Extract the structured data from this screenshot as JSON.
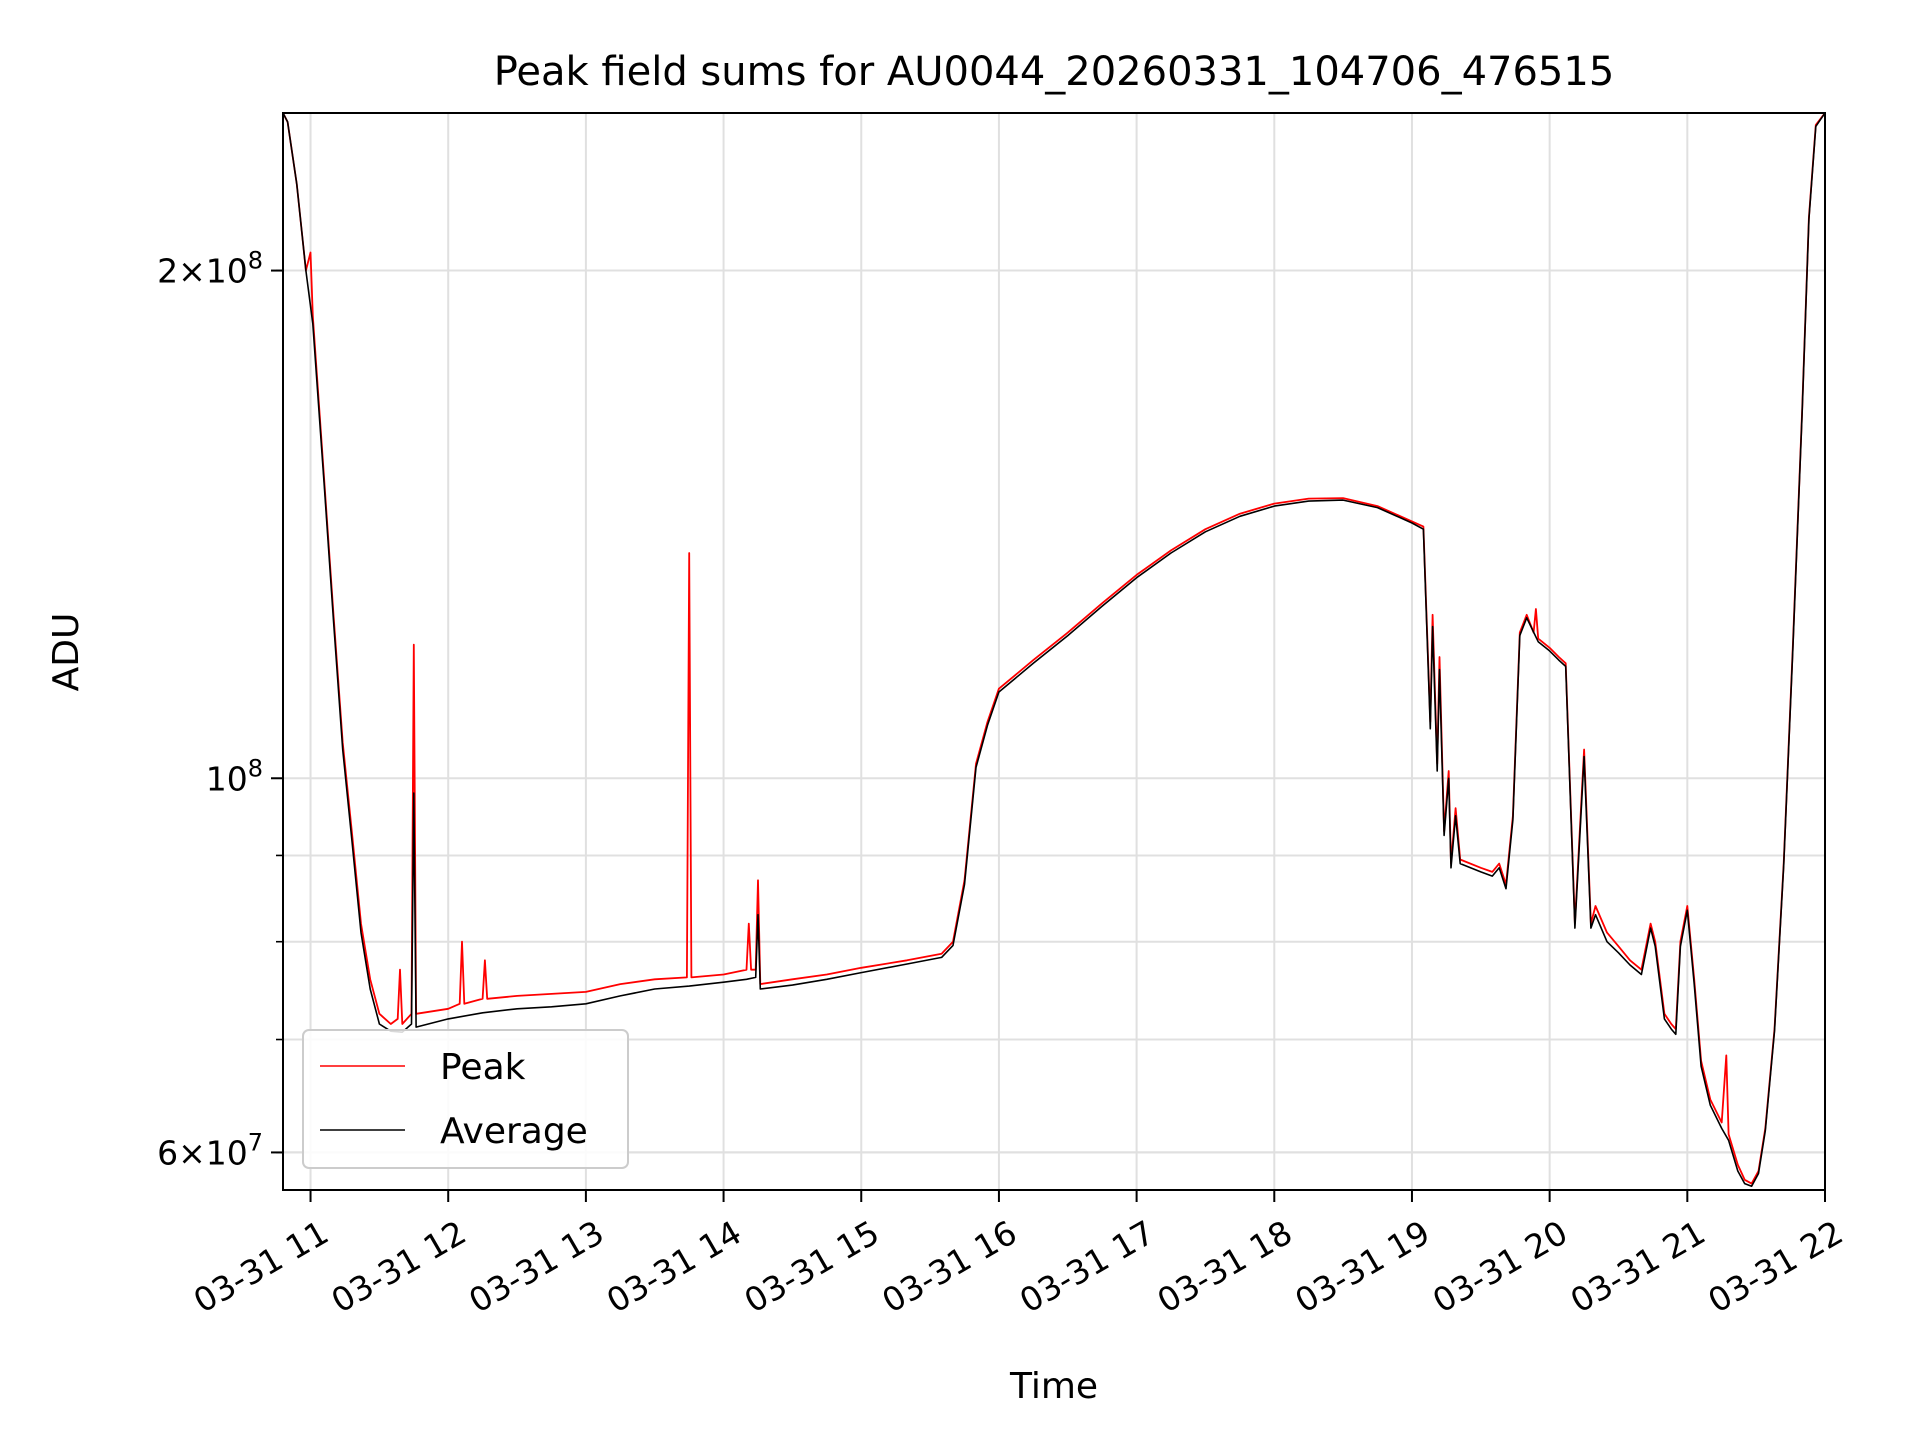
{
  "chart_data": {
    "type": "line",
    "title": "Peak field sums for AU0044_20260331_104706_476515",
    "xlabel": "Time",
    "ylabel": "ADU",
    "y_scale": "log",
    "ylim": [
      57000000,
      248000000
    ],
    "xlim": [
      "2026-03-31 10:48",
      "2026-03-31 22:00"
    ],
    "x_tick_labels": [
      "03-31 11",
      "03-31 12",
      "03-31 13",
      "03-31 14",
      "03-31 15",
      "03-31 16",
      "03-31 17",
      "03-31 18",
      "03-31 19",
      "03-31 20",
      "03-31 21",
      "03-31 22"
    ],
    "x_tick_times": [
      "2026-03-31 11:00",
      "2026-03-31 12:00",
      "2026-03-31 13:00",
      "2026-03-31 14:00",
      "2026-03-31 15:00",
      "2026-03-31 16:00",
      "2026-03-31 17:00",
      "2026-03-31 18:00",
      "2026-03-31 19:00",
      "2026-03-31 20:00",
      "2026-03-31 21:00",
      "2026-03-31 22:00"
    ],
    "y_major_ticks": [
      {
        "value": 200000000,
        "mantissa": "2",
        "exponent": "8"
      },
      {
        "value": 100000000,
        "mantissa": "",
        "exponent": "8"
      },
      {
        "value": 60000000,
        "mantissa": "6",
        "exponent": "7"
      }
    ],
    "y_minor_ticks": [
      200000000,
      90000000,
      80000000,
      70000000,
      60000000
    ],
    "grid": true,
    "legend": {
      "placement": "lower-left"
    },
    "series": [
      {
        "name": "Peak",
        "color": "#ff0000",
        "points": [
          [
            "2026-03-31 10:48",
            248000000
          ],
          [
            "2026-03-31 10:50",
            245000000
          ],
          [
            "2026-03-31 10:54",
            225000000
          ],
          [
            "2026-03-31 10:58",
            200000000
          ],
          [
            "2026-03-31 11:00",
            205000000
          ],
          [
            "2026-03-31 11:01",
            188000000
          ],
          [
            "2026-03-31 11:06",
            150000000
          ],
          [
            "2026-03-31 11:10",
            125000000
          ],
          [
            "2026-03-31 11:14",
            105000000
          ],
          [
            "2026-03-31 11:18",
            93000000
          ],
          [
            "2026-03-31 11:22",
            82000000
          ],
          [
            "2026-03-31 11:26",
            76000000
          ],
          [
            "2026-03-31 11:30",
            72500000
          ],
          [
            "2026-03-31 11:35",
            71500000
          ],
          [
            "2026-03-31 11:38",
            72000000
          ],
          [
            "2026-03-31 11:39",
            77000000
          ],
          [
            "2026-03-31 11:40",
            71500000
          ],
          [
            "2026-03-31 11:44",
            72500000
          ],
          [
            "2026-03-31 11:45",
            120000000
          ],
          [
            "2026-03-31 11:46",
            72500000
          ],
          [
            "2026-03-31 12:00",
            73000000
          ],
          [
            "2026-03-31 12:05",
            73500000
          ],
          [
            "2026-03-31 12:06",
            80000000
          ],
          [
            "2026-03-31 12:07",
            73500000
          ],
          [
            "2026-03-31 12:15",
            74000000
          ],
          [
            "2026-03-31 12:16",
            78000000
          ],
          [
            "2026-03-31 12:17",
            74000000
          ],
          [
            "2026-03-31 12:30",
            74300000
          ],
          [
            "2026-03-31 12:45",
            74500000
          ],
          [
            "2026-03-31 13:00",
            74700000
          ],
          [
            "2026-03-31 13:15",
            75500000
          ],
          [
            "2026-03-31 13:30",
            76000000
          ],
          [
            "2026-03-31 13:44",
            76200000
          ],
          [
            "2026-03-31 13:45",
            136000000
          ],
          [
            "2026-03-31 13:46",
            76200000
          ],
          [
            "2026-03-31 14:00",
            76500000
          ],
          [
            "2026-03-31 14:10",
            77000000
          ],
          [
            "2026-03-31 14:11",
            82000000
          ],
          [
            "2026-03-31 14:12",
            77000000
          ],
          [
            "2026-03-31 14:14",
            77000000
          ],
          [
            "2026-03-31 14:15",
            87000000
          ],
          [
            "2026-03-31 14:16",
            75500000
          ],
          [
            "2026-03-31 14:30",
            76000000
          ],
          [
            "2026-03-31 14:45",
            76500000
          ],
          [
            "2026-03-31 15:00",
            77200000
          ],
          [
            "2026-03-31 15:20",
            78000000
          ],
          [
            "2026-03-31 15:35",
            78700000
          ],
          [
            "2026-03-31 15:40",
            80000000
          ],
          [
            "2026-03-31 15:45",
            87000000
          ],
          [
            "2026-03-31 15:50",
            102000000
          ],
          [
            "2026-03-31 15:55",
            108000000
          ],
          [
            "2026-03-31 16:00",
            113000000
          ],
          [
            "2026-03-31 16:15",
            117500000
          ],
          [
            "2026-03-31 16:30",
            122000000
          ],
          [
            "2026-03-31 16:45",
            127000000
          ],
          [
            "2026-03-31 17:00",
            132000000
          ],
          [
            "2026-03-31 17:15",
            136500000
          ],
          [
            "2026-03-31 17:30",
            140500000
          ],
          [
            "2026-03-31 17:45",
            143500000
          ],
          [
            "2026-03-31 18:00",
            145500000
          ],
          [
            "2026-03-31 18:15",
            146500000
          ],
          [
            "2026-03-31 18:30",
            146600000
          ],
          [
            "2026-03-31 18:45",
            145000000
          ],
          [
            "2026-03-31 19:00",
            142000000
          ],
          [
            "2026-03-31 19:05",
            141000000
          ],
          [
            "2026-03-31 19:08",
            108000000
          ],
          [
            "2026-03-31 19:09",
            125000000
          ],
          [
            "2026-03-31 19:11",
            102000000
          ],
          [
            "2026-03-31 19:12",
            118000000
          ],
          [
            "2026-03-31 19:14",
            93000000
          ],
          [
            "2026-03-31 19:16",
            101000000
          ],
          [
            "2026-03-31 19:17",
            89000000
          ],
          [
            "2026-03-31 19:19",
            96000000
          ],
          [
            "2026-03-31 19:21",
            89500000
          ],
          [
            "2026-03-31 19:30",
            88500000
          ],
          [
            "2026-03-31 19:35",
            88000000
          ],
          [
            "2026-03-31 19:38",
            89000000
          ],
          [
            "2026-03-31 19:41",
            86500000
          ],
          [
            "2026-03-31 19:44",
            95000000
          ],
          [
            "2026-03-31 19:47",
            122000000
          ],
          [
            "2026-03-31 19:50",
            125000000
          ],
          [
            "2026-03-31 19:53",
            122000000
          ],
          [
            "2026-03-31 19:54",
            126000000
          ],
          [
            "2026-03-31 19:55",
            121000000
          ],
          [
            "2026-03-31 20:00",
            119500000
          ],
          [
            "2026-03-31 20:04",
            118000000
          ],
          [
            "2026-03-31 20:07",
            117000000
          ],
          [
            "2026-03-31 20:11",
            82000000
          ],
          [
            "2026-03-31 20:15",
            104000000
          ],
          [
            "2026-03-31 20:18",
            82000000
          ],
          [
            "2026-03-31 20:20",
            84000000
          ],
          [
            "2026-03-31 20:25",
            81000000
          ],
          [
            "2026-03-31 20:30",
            79500000
          ],
          [
            "2026-03-31 20:35",
            78000000
          ],
          [
            "2026-03-31 20:40",
            77000000
          ],
          [
            "2026-03-31 20:44",
            82000000
          ],
          [
            "2026-03-31 20:46",
            80000000
          ],
          [
            "2026-03-31 20:50",
            72500000
          ],
          [
            "2026-03-31 20:53",
            71500000
          ],
          [
            "2026-03-31 20:55",
            71000000
          ],
          [
            "2026-03-31 20:57",
            80000000
          ],
          [
            "2026-03-31 21:00",
            84000000
          ],
          [
            "2026-03-31 21:03",
            76000000
          ],
          [
            "2026-03-31 21:06",
            68000000
          ],
          [
            "2026-03-31 21:10",
            64500000
          ],
          [
            "2026-03-31 21:15",
            62500000
          ],
          [
            "2026-03-31 21:17",
            68500000
          ],
          [
            "2026-03-31 21:18",
            61500000
          ],
          [
            "2026-03-31 21:22",
            59000000
          ],
          [
            "2026-03-31 21:25",
            57800000
          ],
          [
            "2026-03-31 21:28",
            57500000
          ],
          [
            "2026-03-31 21:31",
            58500000
          ],
          [
            "2026-03-31 21:34",
            62000000
          ],
          [
            "2026-03-31 21:38",
            71000000
          ],
          [
            "2026-03-31 21:42",
            89000000
          ],
          [
            "2026-03-31 21:46",
            120000000
          ],
          [
            "2026-03-31 21:50",
            165000000
          ],
          [
            "2026-03-31 21:53",
            215000000
          ],
          [
            "2026-03-31 21:56",
            244000000
          ],
          [
            "2026-03-31 22:00",
            248000000
          ]
        ]
      },
      {
        "name": "Average",
        "color": "#000000",
        "points": [
          [
            "2026-03-31 10:48",
            248000000
          ],
          [
            "2026-03-31 10:50",
            245000000
          ],
          [
            "2026-03-31 10:54",
            225000000
          ],
          [
            "2026-03-31 10:58",
            200000000
          ],
          [
            "2026-03-31 11:01",
            186000000
          ],
          [
            "2026-03-31 11:06",
            149000000
          ],
          [
            "2026-03-31 11:10",
            124000000
          ],
          [
            "2026-03-31 11:14",
            104000000
          ],
          [
            "2026-03-31 11:18",
            92000000
          ],
          [
            "2026-03-31 11:22",
            81000000
          ],
          [
            "2026-03-31 11:26",
            75000000
          ],
          [
            "2026-03-31 11:30",
            71500000
          ],
          [
            "2026-03-31 11:35",
            70800000
          ],
          [
            "2026-03-31 11:40",
            70700000
          ],
          [
            "2026-03-31 11:44",
            71500000
          ],
          [
            "2026-03-31 11:45",
            98000000
          ],
          [
            "2026-03-31 11:46",
            71200000
          ],
          [
            "2026-03-31 12:00",
            72000000
          ],
          [
            "2026-03-31 12:15",
            72600000
          ],
          [
            "2026-03-31 12:30",
            73000000
          ],
          [
            "2026-03-31 12:45",
            73200000
          ],
          [
            "2026-03-31 13:00",
            73500000
          ],
          [
            "2026-03-31 13:15",
            74300000
          ],
          [
            "2026-03-31 13:30",
            75000000
          ],
          [
            "2026-03-31 13:45",
            75300000
          ],
          [
            "2026-03-31 14:00",
            75700000
          ],
          [
            "2026-03-31 14:10",
            76000000
          ],
          [
            "2026-03-31 14:14",
            76200000
          ],
          [
            "2026-03-31 14:15",
            83000000
          ],
          [
            "2026-03-31 14:16",
            75000000
          ],
          [
            "2026-03-31 14:30",
            75400000
          ],
          [
            "2026-03-31 14:45",
            76000000
          ],
          [
            "2026-03-31 15:00",
            76700000
          ],
          [
            "2026-03-31 15:20",
            77600000
          ],
          [
            "2026-03-31 15:35",
            78300000
          ],
          [
            "2026-03-31 15:40",
            79600000
          ],
          [
            "2026-03-31 15:45",
            86500000
          ],
          [
            "2026-03-31 15:50",
            101500000
          ],
          [
            "2026-03-31 15:55",
            107500000
          ],
          [
            "2026-03-31 16:00",
            112500000
          ],
          [
            "2026-03-31 16:15",
            117000000
          ],
          [
            "2026-03-31 16:30",
            121500000
          ],
          [
            "2026-03-31 16:45",
            126500000
          ],
          [
            "2026-03-31 17:00",
            131500000
          ],
          [
            "2026-03-31 17:15",
            136000000
          ],
          [
            "2026-03-31 17:30",
            140000000
          ],
          [
            "2026-03-31 17:45",
            143000000
          ],
          [
            "2026-03-31 18:00",
            145000000
          ],
          [
            "2026-03-31 18:15",
            146000000
          ],
          [
            "2026-03-31 18:30",
            146200000
          ],
          [
            "2026-03-31 18:45",
            144700000
          ],
          [
            "2026-03-31 19:00",
            141700000
          ],
          [
            "2026-03-31 19:05",
            140500000
          ],
          [
            "2026-03-31 19:08",
            107000000
          ],
          [
            "2026-03-31 19:09",
            123000000
          ],
          [
            "2026-03-31 19:11",
            101000000
          ],
          [
            "2026-03-31 19:12",
            116000000
          ],
          [
            "2026-03-31 19:14",
            92500000
          ],
          [
            "2026-03-31 19:16",
            100000000
          ],
          [
            "2026-03-31 19:17",
            88500000
          ],
          [
            "2026-03-31 19:19",
            95000000
          ],
          [
            "2026-03-31 19:21",
            89000000
          ],
          [
            "2026-03-31 19:30",
            88000000
          ],
          [
            "2026-03-31 19:35",
            87500000
          ],
          [
            "2026-03-31 19:38",
            88500000
          ],
          [
            "2026-03-31 19:41",
            86000000
          ],
          [
            "2026-03-31 19:44",
            94500000
          ],
          [
            "2026-03-31 19:47",
            121500000
          ],
          [
            "2026-03-31 19:50",
            124500000
          ],
          [
            "2026-03-31 19:55",
            120500000
          ],
          [
            "2026-03-31 20:00",
            119000000
          ],
          [
            "2026-03-31 20:04",
            117500000
          ],
          [
            "2026-03-31 20:07",
            116500000
          ],
          [
            "2026-03-31 20:11",
            81500000
          ],
          [
            "2026-03-31 20:15",
            103000000
          ],
          [
            "2026-03-31 20:18",
            81500000
          ],
          [
            "2026-03-31 20:20",
            83000000
          ],
          [
            "2026-03-31 20:25",
            80000000
          ],
          [
            "2026-03-31 20:30",
            78800000
          ],
          [
            "2026-03-31 20:35",
            77500000
          ],
          [
            "2026-03-31 20:40",
            76500000
          ],
          [
            "2026-03-31 20:44",
            81500000
          ],
          [
            "2026-03-31 20:46",
            79500000
          ],
          [
            "2026-03-31 20:50",
            72000000
          ],
          [
            "2026-03-31 20:53",
            71000000
          ],
          [
            "2026-03-31 20:55",
            70500000
          ],
          [
            "2026-03-31 20:57",
            79500000
          ],
          [
            "2026-03-31 21:00",
            83500000
          ],
          [
            "2026-03-31 21:03",
            75500000
          ],
          [
            "2026-03-31 21:06",
            67500000
          ],
          [
            "2026-03-31 21:10",
            64000000
          ],
          [
            "2026-03-31 21:15",
            62000000
          ],
          [
            "2026-03-31 21:18",
            61000000
          ],
          [
            "2026-03-31 21:22",
            58500000
          ],
          [
            "2026-03-31 21:25",
            57500000
          ],
          [
            "2026-03-31 21:28",
            57300000
          ],
          [
            "2026-03-31 21:31",
            58300000
          ],
          [
            "2026-03-31 21:34",
            61800000
          ],
          [
            "2026-03-31 21:38",
            70800000
          ],
          [
            "2026-03-31 21:42",
            88800000
          ],
          [
            "2026-03-31 21:46",
            119500000
          ],
          [
            "2026-03-31 21:50",
            164500000
          ],
          [
            "2026-03-31 21:53",
            214500000
          ],
          [
            "2026-03-31 21:56",
            243500000
          ],
          [
            "2026-03-31 22:00",
            248000000
          ]
        ]
      }
    ]
  }
}
